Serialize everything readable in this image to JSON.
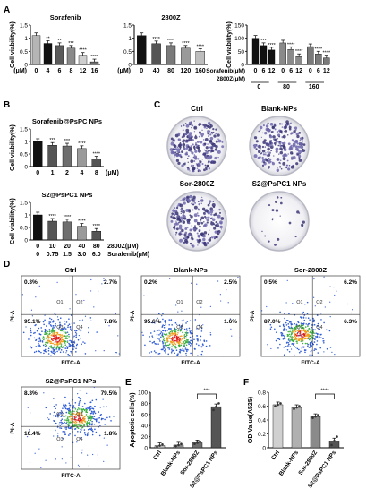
{
  "panel_letters": [
    "A",
    "B",
    "C",
    "D",
    "E",
    "F"
  ],
  "colony_labels": [
    "Ctrl",
    "Blank-NPs",
    "Sor-2800Z",
    "S2@PsPC1 NPs"
  ],
  "flow_labels": {
    "xaxis": "FITC-A",
    "yaxis": "PI-A",
    "quadrants": [
      "Q1",
      "Q2",
      "Q3",
      "Q4"
    ]
  },
  "chart_data": [
    {
      "id": "a1",
      "type": "bar",
      "title": "Sorafenib",
      "ylabel": "Cell viability(%)",
      "xlabel_prefix": "(μM)",
      "categories": [
        "0",
        "4",
        "6",
        "8",
        "12",
        "16"
      ],
      "values": [
        1.1,
        0.8,
        0.72,
        0.62,
        0.35,
        0.1
      ],
      "colors": [
        "#b5b5b5",
        "#111111",
        "#5a5a5a",
        "#8a8a8a",
        "#cfcfcf",
        "#6e6e6e"
      ],
      "sig": [
        "",
        "**",
        "**",
        "***",
        "****",
        "****"
      ],
      "ylim": [
        0,
        1.5
      ],
      "yticks": [
        0,
        0.5,
        1,
        1.5
      ]
    },
    {
      "id": "a2",
      "type": "bar",
      "title": "2800Z",
      "ylabel": "",
      "xlabel_prefix": "(μM)",
      "categories": [
        "0",
        "40",
        "80",
        "120",
        "160"
      ],
      "values": [
        1.1,
        0.79,
        0.72,
        0.62,
        0.5
      ],
      "colors": [
        "#111111",
        "#555555",
        "#7a7a7a",
        "#9a9a9a",
        "#bdbdbd"
      ],
      "sig": [
        "",
        "****",
        "****",
        "****",
        "****"
      ],
      "ylim": [
        0,
        1.5
      ],
      "yticks": [
        0,
        0.5,
        1,
        1.5
      ]
    },
    {
      "id": "a3",
      "type": "bar",
      "title": "",
      "ylabel": "Cell viability(%)",
      "categories": [
        "0",
        "6",
        "12",
        "0",
        "6",
        "12",
        "0",
        "6",
        "12"
      ],
      "groups": [
        "0",
        "80",
        "160"
      ],
      "row_labels": [
        "Sorafenib(μM)",
        "2800Z(μM)"
      ],
      "values": [
        100,
        72,
        55,
        82,
        57,
        30,
        68,
        40,
        25
      ],
      "colors": [
        "#111111",
        "#111111",
        "#111111",
        "#8a8a8a",
        "#8a8a8a",
        "#8a8a8a",
        "#7a7a7a",
        "#7a7a7a",
        "#7a7a7a"
      ],
      "sig": [
        "",
        "***",
        "****",
        "",
        "****",
        "****",
        "",
        "****",
        "****"
      ],
      "ylim": [
        0,
        150
      ],
      "yticks": [
        0,
        50,
        100,
        150
      ]
    },
    {
      "id": "b1",
      "type": "bar",
      "title": "Sorafenib@PsPC NPs",
      "ylabel": "Cell viability(%)",
      "xlabel_suffix": "(μM)",
      "categories": [
        "0",
        "1",
        "2",
        "4",
        "8"
      ],
      "values": [
        1.0,
        0.85,
        0.82,
        0.72,
        0.3
      ],
      "colors": [
        "#111111",
        "#555555",
        "#6e6e6e",
        "#9a9a9a",
        "#555555"
      ],
      "sig": [
        "",
        "***",
        "***",
        "****",
        "****"
      ],
      "ylim": [
        0,
        1.5
      ],
      "yticks": [
        0,
        0.5,
        1,
        1.5
      ]
    },
    {
      "id": "b2",
      "type": "bar",
      "title": "S2@PsPC1 NPs",
      "ylabel": "Cell viability(%)",
      "categories": [
        "0",
        "10",
        "20",
        "40",
        "80"
      ],
      "categories2": [
        "0",
        "0.75",
        "1.5",
        "3.0",
        "6.0"
      ],
      "row_labels": [
        "2800Z(μM)",
        "Sorafenib(μM)"
      ],
      "values": [
        1.0,
        0.75,
        0.72,
        0.55,
        0.35
      ],
      "colors": [
        "#111111",
        "#555555",
        "#6e6e6e",
        "#9a9a9a",
        "#555555"
      ],
      "sig": [
        "",
        "****",
        "****",
        "****",
        "****"
      ],
      "ylim": [
        0,
        1.5
      ],
      "yticks": [
        0,
        0.5,
        1,
        1.5
      ]
    },
    {
      "id": "d_ctrl",
      "type": "scatter",
      "title": "Ctrl",
      "quadrant_pct": [
        "0.3%",
        "2.7%",
        "95.1%",
        "7.8%"
      ]
    },
    {
      "id": "d_blank",
      "type": "scatter",
      "title": "Blank-NPs",
      "quadrant_pct": [
        "0.2%",
        "2.5%",
        "95.6%",
        "1.6%"
      ]
    },
    {
      "id": "d_sor",
      "type": "scatter",
      "title": "Sor-2800Z",
      "quadrant_pct": [
        "0.5%",
        "6.2%",
        "87.0%",
        "6.3%"
      ]
    },
    {
      "id": "d_s2",
      "type": "scatter",
      "title": "S2@PsPC1 NPs",
      "quadrant_pct": [
        "8.3%",
        "79.5%",
        "10.4%",
        "1.8%"
      ]
    },
    {
      "id": "e",
      "type": "bar",
      "title": "",
      "ylabel": "Apoptotic cells(%)",
      "categories": [
        "Ctrl",
        "Blank-NPs",
        "Sor-2800Z",
        "S2@PsPC1 NPs"
      ],
      "values": [
        4,
        5,
        9,
        74
      ],
      "colors": [
        "#bdbdbd",
        "#8a8a8a",
        "#6e6e6e",
        "#555555"
      ],
      "sig_bracket": "***",
      "ylim": [
        0,
        100
      ],
      "yticks": [
        0,
        20,
        40,
        60,
        80,
        100
      ]
    },
    {
      "id": "f",
      "type": "bar",
      "title": "",
      "ylabel": "OD Value(A525)",
      "categories": [
        "Ctrl",
        "Blank-NPs",
        "Sor-2800Z",
        "S2@PsPC1 NPs"
      ],
      "values": [
        0.62,
        0.58,
        0.45,
        0.1
      ],
      "colors": [
        "#d0d0d0",
        "#b0b0b0",
        "#8a8a8a",
        "#555555"
      ],
      "sig_bracket": "****",
      "ylim": [
        0,
        0.8
      ],
      "yticks": [
        0,
        0.2,
        0.4,
        0.6,
        0.8
      ]
    }
  ]
}
